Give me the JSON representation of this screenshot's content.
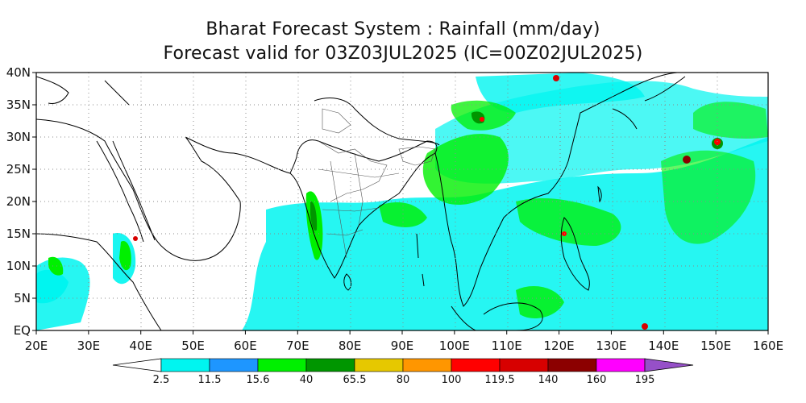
{
  "title": {
    "line1": "Bharat Forecast System : Rainfall (mm/day)",
    "line2": "Forecast valid for 03Z03JUL2025 (IC=00Z02JUL2025)"
  },
  "map": {
    "lat_ticks": [
      "EQ",
      "5N",
      "10N",
      "15N",
      "20N",
      "25N",
      "30N",
      "35N",
      "40N"
    ],
    "lon_ticks": [
      "20E",
      "30E",
      "40E",
      "50E",
      "60E",
      "70E",
      "80E",
      "90E",
      "100E",
      "110E",
      "120E",
      "130E",
      "140E",
      "150E",
      "160E"
    ],
    "lon_range": [
      20,
      160
    ],
    "lat_range": [
      0,
      40
    ]
  },
  "colorbar": {
    "labels": [
      "2.5",
      "11.5",
      "15.6",
      "40",
      "65.5",
      "80",
      "100",
      "119.5",
      "140",
      "160",
      "195"
    ],
    "colors": [
      "#ffffff",
      "#00f5f0",
      "#1e96ff",
      "#00f000",
      "#009600",
      "#e6c800",
      "#ff9600",
      "#ff0000",
      "#d70000",
      "#8c0000",
      "#ff00ff",
      "#9650c8"
    ]
  }
}
